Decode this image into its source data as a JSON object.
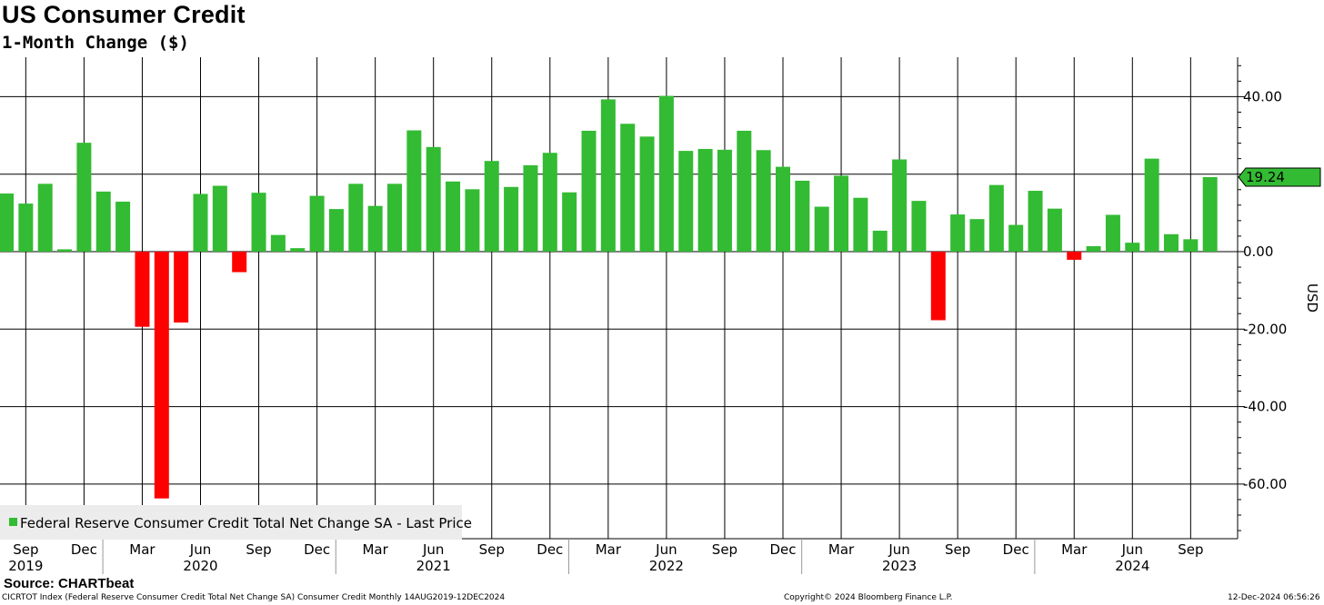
{
  "header": {
    "title": "US Consumer Credit",
    "subtitle": "1-Month Change ($)",
    "source": "Source: CHARTbeat"
  },
  "footer": {
    "left": "CICRTOT Index (Federal Reserve Consumer Credit Total Net Change SA) Consumer Credit  Monthly 14AUG2019-12DEC2024",
    "center": "Copyright© 2024 Bloomberg Finance L.P.",
    "right": "12-Dec-2024 06:56:26"
  },
  "chart_data": {
    "type": "bar",
    "ylabel": "USD",
    "ylim": [
      -73,
      50
    ],
    "yticks": [
      40,
      0,
      -20,
      -40,
      -60
    ],
    "ytick_labels": [
      "40.00",
      "0.00",
      "-20.00",
      "-40.00",
      "-60.00"
    ],
    "y_gridlines": [
      40,
      20,
      0,
      -20,
      -40,
      -60
    ],
    "last_price": 19.24,
    "last_price_label": "19.24",
    "legend": {
      "label": "Federal Reserve Consumer Credit Total Net Change SA - Last Price",
      "position": "bottom-left"
    },
    "colors": {
      "positive": "#33bb33",
      "negative": "#ff0000",
      "grid": "#000000",
      "label_box": "#33bb33"
    },
    "month_tick_labels": [
      {
        "i": 1,
        "label": "Sep"
      },
      {
        "i": 4,
        "label": "Dec"
      },
      {
        "i": 7,
        "label": "Mar"
      },
      {
        "i": 10,
        "label": "Jun"
      },
      {
        "i": 13,
        "label": "Sep"
      },
      {
        "i": 16,
        "label": "Dec"
      },
      {
        "i": 19,
        "label": "Mar"
      },
      {
        "i": 22,
        "label": "Jun"
      },
      {
        "i": 25,
        "label": "Sep"
      },
      {
        "i": 28,
        "label": "Dec"
      },
      {
        "i": 31,
        "label": "Mar"
      },
      {
        "i": 34,
        "label": "Jun"
      },
      {
        "i": 37,
        "label": "Sep"
      },
      {
        "i": 40,
        "label": "Dec"
      },
      {
        "i": 43,
        "label": "Mar"
      },
      {
        "i": 46,
        "label": "Jun"
      },
      {
        "i": 49,
        "label": "Sep"
      },
      {
        "i": 52,
        "label": "Dec"
      },
      {
        "i": 55,
        "label": "Mar"
      },
      {
        "i": 58,
        "label": "Jun"
      },
      {
        "i": 61,
        "label": "Sep"
      }
    ],
    "year_labels": [
      {
        "i": 1,
        "label": "2019"
      },
      {
        "i": 10,
        "label": "2020"
      },
      {
        "i": 22,
        "label": "2021"
      },
      {
        "i": 34,
        "label": "2022"
      },
      {
        "i": 46,
        "label": "2023"
      },
      {
        "i": 58,
        "label": "2024"
      }
    ],
    "x": [
      "Aug 2019",
      "Sep 2019",
      "Oct 2019",
      "Nov 2019",
      "Dec 2019",
      "Jan 2020",
      "Feb 2020",
      "Mar 2020",
      "Apr 2020",
      "May 2020",
      "Jun 2020",
      "Jul 2020",
      "Aug 2020",
      "Sep 2020",
      "Oct 2020",
      "Nov 2020",
      "Dec 2020",
      "Jan 2021",
      "Feb 2021",
      "Mar 2021",
      "Apr 2021",
      "May 2021",
      "Jun 2021",
      "Jul 2021",
      "Aug 2021",
      "Sep 2021",
      "Oct 2021",
      "Nov 2021",
      "Dec 2021",
      "Jan 2022",
      "Feb 2022",
      "Mar 2022",
      "Apr 2022",
      "May 2022",
      "Jun 2022",
      "Jul 2022",
      "Aug 2022",
      "Sep 2022",
      "Oct 2022",
      "Nov 2022",
      "Dec 2022",
      "Jan 2023",
      "Feb 2023",
      "Mar 2023",
      "Apr 2023",
      "May 2023",
      "Jun 2023",
      "Jul 2023",
      "Aug 2023",
      "Sep 2023",
      "Oct 2023",
      "Nov 2023",
      "Dec 2023",
      "Jan 2024",
      "Feb 2024",
      "Mar 2024",
      "Apr 2024",
      "May 2024",
      "Jun 2024",
      "Jul 2024",
      "Aug 2024",
      "Sep 2024",
      "Oct 2024"
    ],
    "values": [
      15.0,
      12.4,
      17.5,
      0.6,
      28.1,
      15.5,
      12.9,
      -19.4,
      -63.7,
      -18.3,
      14.9,
      17.0,
      -5.3,
      15.2,
      4.3,
      0.9,
      14.4,
      11.0,
      17.5,
      11.8,
      17.5,
      31.3,
      27.0,
      18.1,
      16.1,
      23.4,
      16.7,
      22.3,
      25.5,
      15.3,
      31.2,
      39.3,
      33.0,
      29.7,
      40.2,
      26.0,
      26.5,
      26.3,
      31.2,
      26.2,
      21.9,
      18.3,
      11.6,
      19.6,
      13.9,
      5.4,
      23.8,
      13.1,
      -17.7,
      9.6,
      8.4,
      17.2,
      6.9,
      15.7,
      11.1,
      -2.1,
      1.4,
      9.5,
      2.3,
      24.0,
      4.5,
      3.2,
      19.24
    ]
  }
}
